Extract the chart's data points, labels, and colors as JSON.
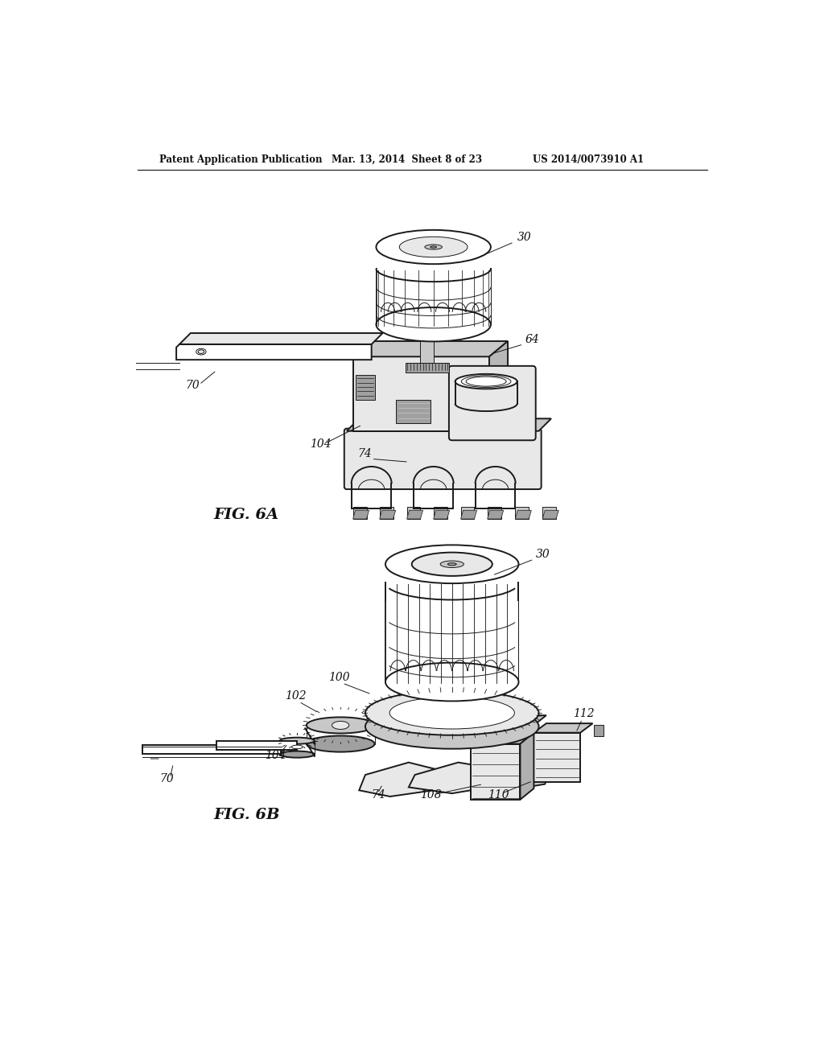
{
  "bg_color": "#ffffff",
  "header_left": "Patent Application Publication",
  "header_mid": "Mar. 13, 2014  Sheet 8 of 23",
  "header_right": "US 2014/0073910 A1",
  "fig6a_label": "FIG. 6A",
  "fig6b_label": "FIG. 6B",
  "line_color": "#1a1a1a",
  "light_gray": "#e8e8e8",
  "mid_gray": "#c8c8c8",
  "dark_gray": "#a0a0a0",
  "white": "#ffffff",
  "lw_main": 1.4,
  "lw_thin": 0.7,
  "lw_thick": 2.0
}
